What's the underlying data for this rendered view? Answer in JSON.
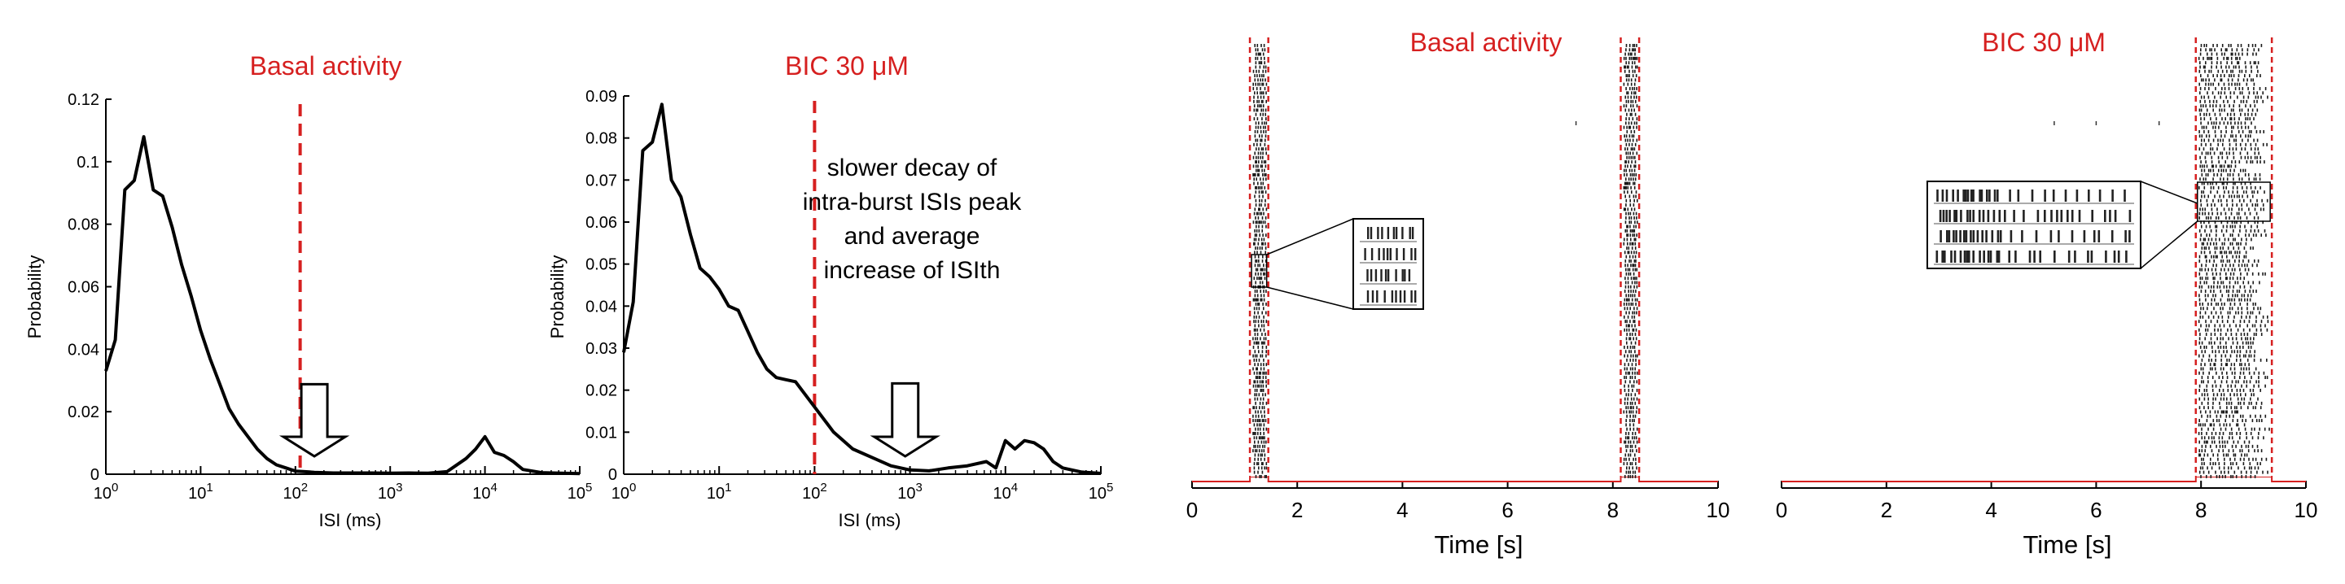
{
  "chart_data": [
    {
      "id": "A",
      "type": "line",
      "title": "Basal activity",
      "xlabel": "ISI (ms)",
      "ylabel": "Probability",
      "xscale": "log",
      "xlim_log10": [
        0,
        5
      ],
      "ylim": [
        0,
        0.12
      ],
      "yticks": [
        0,
        0.02,
        0.04,
        0.06,
        0.08,
        0.1,
        0.12
      ],
      "ytick_labels": [
        "0",
        "0.02",
        "0.04",
        "0.06",
        "0.08",
        "0.1",
        "0.12"
      ],
      "xtick_base": "10",
      "xtick_exps": [
        "0",
        "1",
        "2",
        "3",
        "4",
        "5"
      ],
      "threshold_log10": 2.05,
      "arrow_at_log10": 2.2,
      "series": [
        {
          "x_log10": [
            0.0,
            0.1,
            0.2,
            0.3,
            0.4,
            0.5,
            0.6,
            0.7,
            0.8,
            0.9,
            1.0,
            1.1,
            1.2,
            1.3,
            1.4,
            1.5,
            1.6,
            1.7,
            1.8,
            1.9,
            2.0,
            2.1,
            2.2,
            2.4,
            2.6,
            2.8,
            3.0,
            3.2,
            3.4,
            3.6,
            3.8,
            3.9,
            4.0,
            4.1,
            4.2,
            4.3,
            4.4,
            4.6,
            4.8,
            5.0
          ],
          "y": [
            0.033,
            0.043,
            0.091,
            0.094,
            0.108,
            0.091,
            0.089,
            0.079,
            0.067,
            0.057,
            0.046,
            0.037,
            0.029,
            0.021,
            0.016,
            0.012,
            0.008,
            0.005,
            0.003,
            0.002,
            0.001,
            0.0008,
            0.0006,
            0.0004,
            0.0004,
            0.0004,
            0.0003,
            0.0004,
            0.0003,
            0.0008,
            0.005,
            0.008,
            0.012,
            0.007,
            0.006,
            0.004,
            0.0015,
            0.0005,
            0.0003,
            0.0002
          ]
        }
      ]
    },
    {
      "id": "B",
      "type": "line",
      "title": "BIC 30 μM",
      "xlabel": "ISI (ms)",
      "ylabel": "Probability",
      "xscale": "log",
      "xlim_log10": [
        0,
        5
      ],
      "ylim": [
        0,
        0.09
      ],
      "yticks": [
        0,
        0.01,
        0.02,
        0.03,
        0.04,
        0.05,
        0.06,
        0.07,
        0.08,
        0.09
      ],
      "ytick_labels": [
        "0",
        "0.01",
        "0.02",
        "0.03",
        "0.04",
        "0.05",
        "0.06",
        "0.07",
        "0.08",
        "0.09"
      ],
      "xtick_base": "10",
      "xtick_exps": [
        "0",
        "1",
        "2",
        "3",
        "4",
        "5"
      ],
      "threshold_log10": 2.0,
      "arrow_at_log10": 2.95,
      "annotation_lines": [
        "slower decay of",
        "intra-burst ISIs peak",
        "and average",
        "increase of ISIth"
      ],
      "series": [
        {
          "x_log10": [
            0.0,
            0.1,
            0.2,
            0.3,
            0.4,
            0.5,
            0.6,
            0.7,
            0.8,
            0.9,
            1.0,
            1.1,
            1.2,
            1.3,
            1.4,
            1.5,
            1.6,
            1.7,
            1.8,
            1.9,
            2.0,
            2.2,
            2.4,
            2.6,
            2.8,
            3.0,
            3.2,
            3.4,
            3.6,
            3.8,
            3.9,
            4.0,
            4.1,
            4.2,
            4.3,
            4.4,
            4.5,
            4.6,
            4.8,
            5.0
          ],
          "y": [
            0.029,
            0.041,
            0.077,
            0.079,
            0.088,
            0.07,
            0.066,
            0.057,
            0.049,
            0.047,
            0.044,
            0.04,
            0.039,
            0.034,
            0.029,
            0.025,
            0.023,
            0.0225,
            0.022,
            0.019,
            0.016,
            0.01,
            0.006,
            0.004,
            0.002,
            0.001,
            0.0008,
            0.0015,
            0.002,
            0.003,
            0.0015,
            0.008,
            0.006,
            0.008,
            0.0075,
            0.006,
            0.003,
            0.0015,
            0.0005,
            0.0002
          ]
        }
      ]
    },
    {
      "id": "C",
      "type": "raster",
      "title": "Basal activity",
      "xlabel": "Time [s]",
      "xlim": [
        0,
        10
      ],
      "xticks": [
        0,
        2,
        4,
        6,
        8,
        10
      ],
      "xtick_labels": [
        "0",
        "2",
        "4",
        "6",
        "8",
        "10"
      ],
      "bursts": [
        [
          1.1,
          1.45
        ],
        [
          8.15,
          8.5
        ]
      ],
      "isolated_spikes_s": [
        7.3
      ]
    },
    {
      "id": "D",
      "type": "raster",
      "title": "BIC 30 μM",
      "xlabel": "Time [s]",
      "xlim": [
        0,
        10
      ],
      "xticks": [
        0,
        2,
        4,
        6,
        8,
        10
      ],
      "xtick_labels": [
        "0",
        "2",
        "4",
        "6",
        "8",
        "10"
      ],
      "bursts": [
        [
          7.9,
          9.35
        ]
      ],
      "isolated_spikes_s": [
        5.2,
        6.0,
        7.2
      ]
    }
  ],
  "colors": {
    "accent": "#d62020",
    "line": "#000000"
  }
}
